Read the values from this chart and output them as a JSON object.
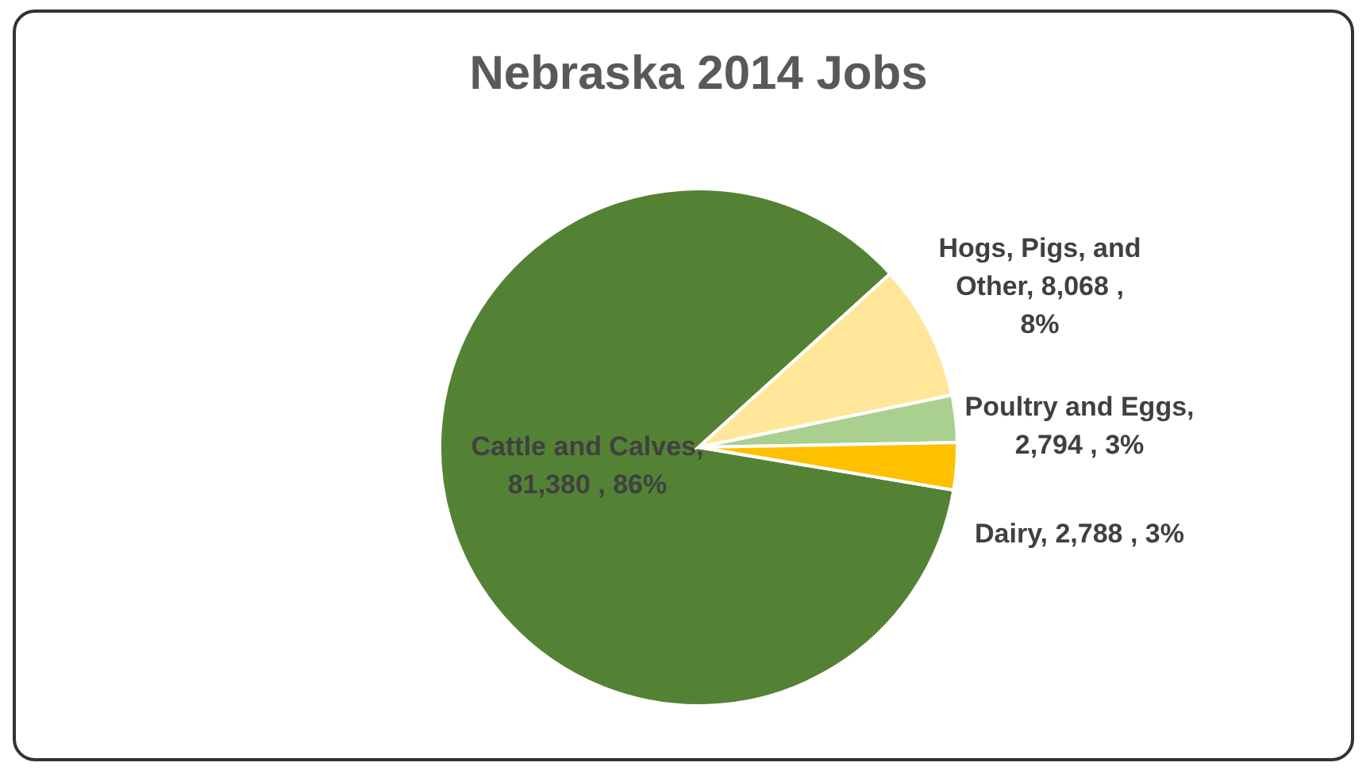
{
  "chart_data": {
    "type": "pie",
    "title": "Nebraska 2014 Jobs",
    "categories": [
      "Cattle and Calves",
      "Hogs, Pigs, and Other",
      "Poultry and Eggs",
      "Dairy"
    ],
    "values": [
      81380,
      8068,
      2794,
      2788
    ],
    "colors": [
      "#548235",
      "#ffe699",
      "#a9d08e",
      "#ffc000"
    ],
    "value_labels": [
      ",  81,380 , 86%",
      ",  8,068 , 8%",
      ", 2,794 , 3%",
      ",  2,788 , 3%"
    ],
    "legend": false
  }
}
